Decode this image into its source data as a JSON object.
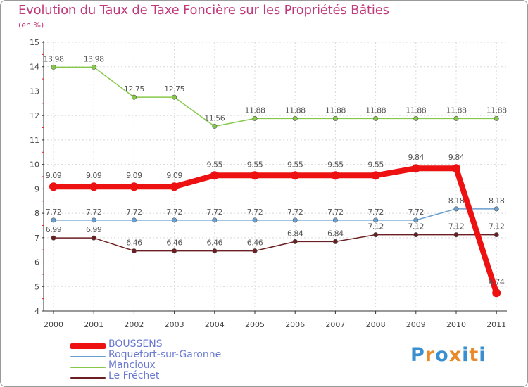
{
  "title": "Evolution du Taux de Taxe Foncière sur les Propriétés Bâties",
  "subtitle": "(en %)",
  "logo": {
    "text": "Proxiti",
    "letters": [
      "P",
      "r",
      "o",
      "x",
      "i",
      "t",
      "i"
    ],
    "colors": [
      "#3a8fd0",
      "#e8892a",
      "#3a8fd0",
      "#e8892a",
      "#3a8fd0",
      "#e8892a",
      "#3a8fd0"
    ]
  },
  "chart_data": {
    "type": "line",
    "title": "Evolution du Taux de Taxe Foncière sur les Propriétés Bâties",
    "ylabel": "(en %)",
    "xlabel": "",
    "ylim": [
      4,
      15
    ],
    "yticks": [
      "4",
      "5",
      "6",
      "7",
      "8",
      "9",
      "10",
      "11",
      "12",
      "13",
      "14",
      "15"
    ],
    "categories": [
      "2000",
      "2001",
      "2002",
      "2003",
      "2004",
      "2005",
      "2006",
      "2007",
      "2008",
      "2009",
      "2010",
      "2011"
    ],
    "series": [
      {
        "name": "Mancioux",
        "color": "#86c94a",
        "width": 1.5,
        "values": [
          13.98,
          13.98,
          12.75,
          12.75,
          11.56,
          11.88,
          11.88,
          11.88,
          11.88,
          11.88,
          11.88,
          11.88
        ],
        "labels": [
          "13.98",
          "13.98",
          "12.75",
          "12.75",
          "11.56",
          "11.88",
          "11.88",
          "11.88",
          "11.88",
          "11.88",
          "11.88",
          "11.88"
        ]
      },
      {
        "name": "Roquefort-sur-Garonne",
        "color": "#6a9fcf",
        "width": 1.5,
        "values": [
          7.72,
          7.72,
          7.72,
          7.72,
          7.72,
          7.72,
          7.72,
          7.72,
          7.72,
          7.72,
          8.18,
          8.18
        ],
        "labels": [
          "7.72",
          "7.72",
          "7.72",
          "7.72",
          "7.72",
          "7.72",
          "7.72",
          "7.72",
          "7.72",
          "7.72",
          "8.18",
          "8.18"
        ]
      },
      {
        "name": "Le Fréchet",
        "color": "#6b1f22",
        "width": 1.5,
        "values": [
          6.99,
          6.99,
          6.46,
          6.46,
          6.46,
          6.46,
          6.84,
          6.84,
          7.12,
          7.12,
          7.12,
          7.12
        ],
        "labels": [
          "6.99",
          "6.99",
          "6.46",
          "6.46",
          "6.46",
          "6.46",
          "6.84",
          "6.84",
          "7.12",
          "7.12",
          "7.12",
          "7.12"
        ]
      },
      {
        "name": "BOUSSENS",
        "color": "#ee1111",
        "width": 8,
        "values": [
          9.09,
          9.09,
          9.09,
          9.09,
          9.55,
          9.55,
          9.55,
          9.55,
          9.55,
          9.84,
          9.84,
          4.74
        ],
        "labels": [
          "9.09",
          "9.09",
          "9.09",
          "9.09",
          "9.55",
          "9.55",
          "9.55",
          "9.55",
          "9.55",
          "9.84",
          "9.84",
          "4.74"
        ]
      }
    ],
    "legend": [
      "BOUSSENS",
      "Roquefort-sur-Garonne",
      "Mancioux",
      "Le Fréchet"
    ],
    "legend_position": "bottom-left",
    "grid": true
  }
}
